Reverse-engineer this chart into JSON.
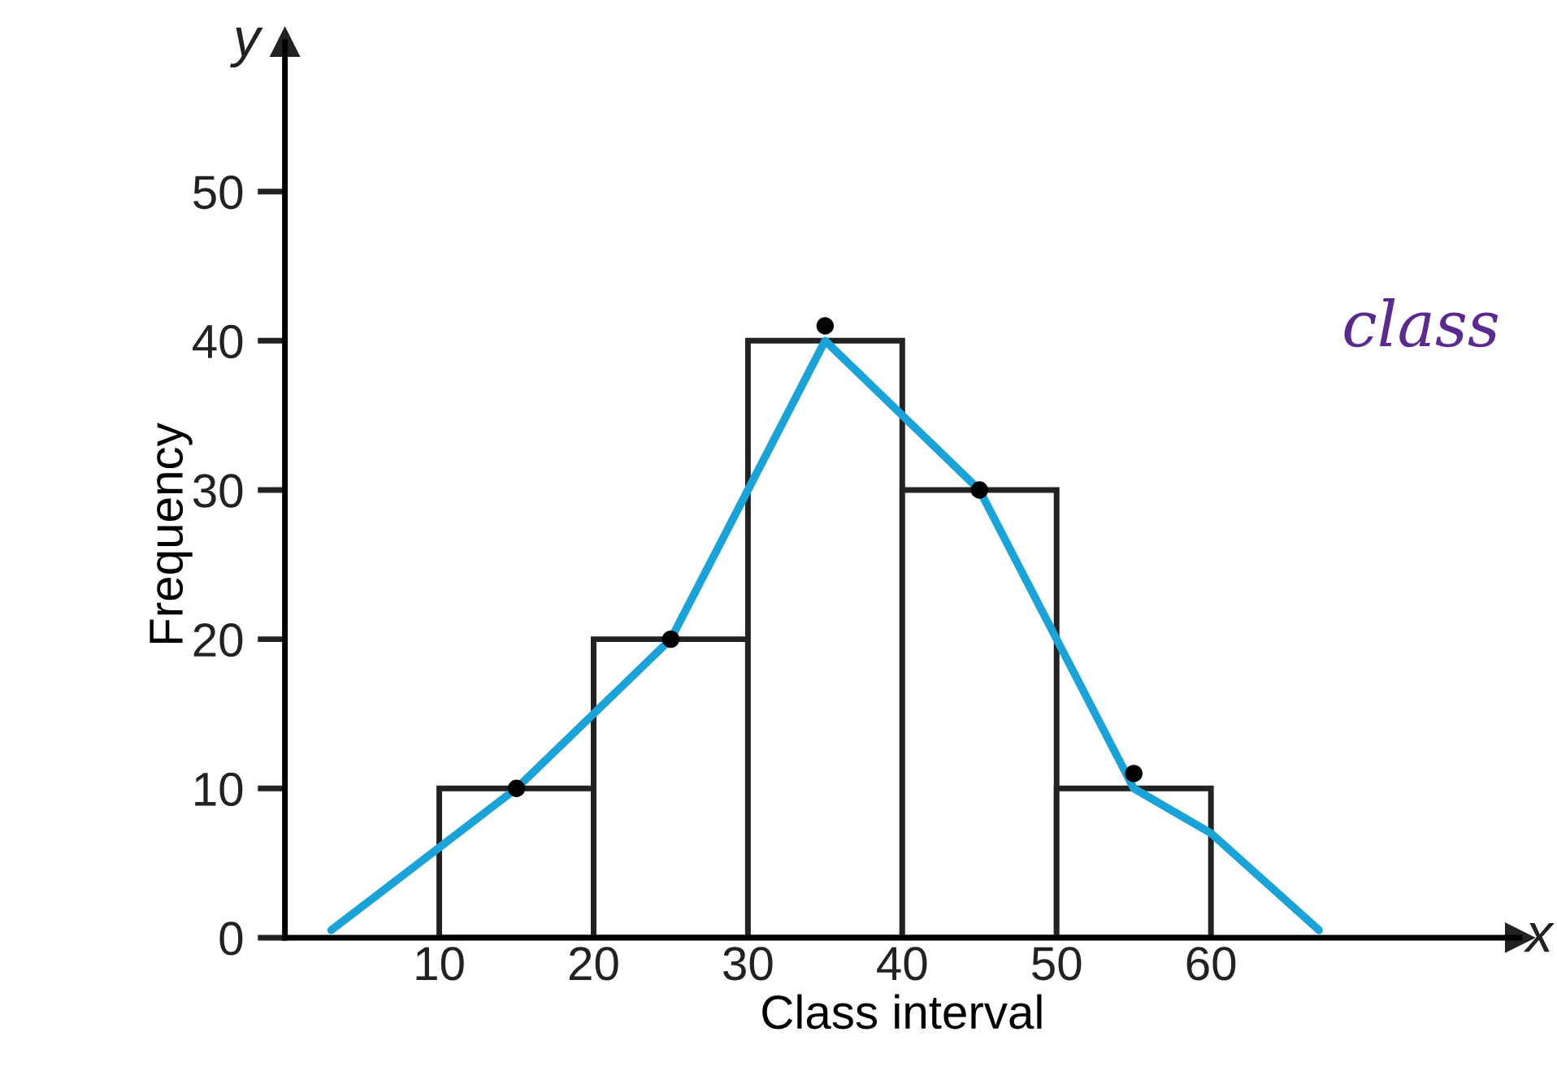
{
  "chart_data": {
    "type": "histogram",
    "xlabel": "Class interval",
    "ylabel": "Frequency",
    "bins": [
      10,
      20,
      30,
      40,
      50,
      60
    ],
    "values": [
      10,
      20,
      40,
      30,
      10
    ],
    "color": "#ffffff",
    "series": [
      {
        "type": "line",
        "x": [
          3,
          15,
          25,
          35,
          45,
          50,
          55,
          60,
          67
        ],
        "values": [
          0.5,
          10,
          20,
          40,
          30,
          20,
          10,
          7,
          0.5
        ],
        "color": "#1aa3d9"
      },
      {
        "type": "scatter",
        "x": [
          15,
          25,
          35,
          45,
          55
        ],
        "values": [
          10,
          20,
          41,
          30,
          11
        ],
        "color": "#000000"
      }
    ],
    "annotations": [
      "x",
      "y",
      "class"
    ],
    "xlim": [
      0,
      80
    ],
    "ylim": [
      0,
      60
    ],
    "xticks": [
      10,
      20,
      30,
      40,
      50,
      60
    ],
    "yticks": [
      0,
      10,
      20,
      30,
      40,
      50
    ],
    "grid": false,
    "legend": false,
    "line_style": "solid"
  }
}
